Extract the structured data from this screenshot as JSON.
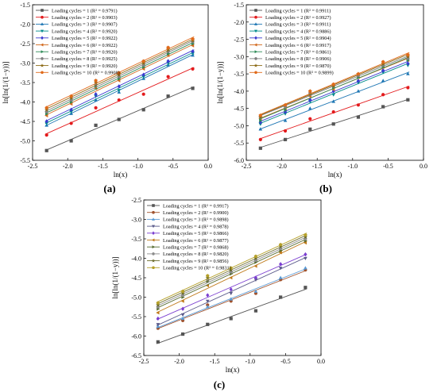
{
  "chart_data": [
    {
      "type": "scatter",
      "panel_label": "(a)",
      "xlabel": "ln(x)",
      "ylabel": "ln[ln(1/(1−y))]",
      "xlim": [
        -2.5,
        0.0
      ],
      "ylim": [
        -5.5,
        -1.5
      ],
      "xticks": [
        "-2.5",
        "-2.0",
        "-1.5",
        "-1.0",
        "-0.5",
        "0.0"
      ],
      "yticks": [
        "-5.5",
        "-5.0",
        "-4.5",
        "-4.0",
        "-3.5",
        "-3.0",
        "-2.5",
        "-2.0",
        "-1.5"
      ],
      "legend_position": "top-left",
      "x": [
        -2.3,
        -1.95,
        -1.6,
        -1.27,
        -0.92,
        -0.57,
        -0.22
      ],
      "series": [
        {
          "legend": "Loading cycles = 1  (R² = 0.9791)",
          "color": "#555555",
          "marker": "square",
          "values": [
            -5.25,
            -5.0,
            -4.6,
            -4.45,
            -4.2,
            -3.85,
            -3.65
          ]
        },
        {
          "legend": "Loading cycles = 2  (R² = 0.9903)",
          "color": "#e31a1c",
          "marker": "circle",
          "values": [
            -4.85,
            -4.55,
            -4.15,
            -3.95,
            -3.8,
            -3.35,
            -3.15
          ]
        },
        {
          "legend": "Loading cycles = 3  (R² = 0.9907)",
          "color": "#1f77b4",
          "marker": "triangle-up",
          "values": [
            -4.6,
            -4.3,
            -3.95,
            -3.75,
            -3.4,
            -3.05,
            -2.8
          ]
        },
        {
          "legend": "Loading cycles = 4  (R² = 0.9920)",
          "color": "#008b8b",
          "marker": "triangle-down",
          "values": [
            -4.55,
            -4.25,
            -3.85,
            -3.7,
            -3.35,
            -3.0,
            -2.75
          ]
        },
        {
          "legend": "Loading cycles = 5  (R² = 0.9922)",
          "color": "#3a3ad0",
          "marker": "diamond",
          "values": [
            -4.5,
            -4.2,
            -3.8,
            -3.6,
            -3.3,
            -2.95,
            -2.7
          ]
        },
        {
          "legend": "Loading cycles = 6  (R² = 0.9922)",
          "color": "#d2691e",
          "marker": "triangle-left",
          "values": [
            -4.35,
            -4.05,
            -3.65,
            -3.45,
            -3.15,
            -2.8,
            -2.55
          ]
        },
        {
          "legend": "Loading cycles = 7  (R² = 0.9920)",
          "color": "#2e8b57",
          "marker": "triangle-right",
          "values": [
            -4.3,
            -4.0,
            -3.6,
            -3.4,
            -3.1,
            -2.75,
            -2.5
          ]
        },
        {
          "legend": "Loading cycles = 8  (R² = 0.9925)",
          "color": "#7f7f7f",
          "marker": "hexagon",
          "values": [
            -4.25,
            -3.95,
            -3.55,
            -3.35,
            -3.05,
            -2.7,
            -2.45
          ]
        },
        {
          "legend": "Loading cycles = 9  (R² = 0.9920)",
          "color": "#8b6914",
          "marker": "star",
          "values": [
            -4.2,
            -3.9,
            -3.5,
            -3.3,
            -3.0,
            -2.65,
            -2.42
          ]
        },
        {
          "legend": "Loading cycles = 10  (R² = 0.9908)",
          "color": "#e06a1a",
          "marker": "pentagon",
          "values": [
            -4.15,
            -3.85,
            -3.45,
            -3.25,
            -2.95,
            -2.6,
            -2.38
          ]
        }
      ]
    },
    {
      "type": "scatter",
      "panel_label": "(b)",
      "xlabel": "ln(x)",
      "ylabel": "ln[ln(1/(1−y))]",
      "xlim": [
        -2.5,
        0.0
      ],
      "ylim": [
        -6.0,
        -1.5
      ],
      "xticks": [
        "-2.5",
        "-2.0",
        "-1.5",
        "-1.0",
        "-0.5",
        "0.0"
      ],
      "yticks": [
        "-6.0",
        "-5.5",
        "-5.0",
        "-4.5",
        "-4.0",
        "-3.5",
        "-3.0",
        "-2.5",
        "-2.0",
        "-1.5"
      ],
      "legend_position": "top-left",
      "x": [
        -2.3,
        -1.95,
        -1.6,
        -1.27,
        -0.92,
        -0.57,
        -0.22
      ],
      "series": [
        {
          "legend": "Loading cycles = 1  (R² = 0.9911)",
          "color": "#555555",
          "marker": "square",
          "values": [
            -5.65,
            -5.4,
            -5.1,
            -4.95,
            -4.75,
            -4.45,
            -4.25
          ]
        },
        {
          "legend": "Loading cycles = 2  (R² = 0.9927)",
          "color": "#e31a1c",
          "marker": "circle",
          "values": [
            -5.4,
            -5.15,
            -4.8,
            -4.6,
            -4.4,
            -4.1,
            -3.9
          ]
        },
        {
          "legend": "Loading cycles = 3  (R² = 0.9911)",
          "color": "#1f77b4",
          "marker": "triangle-up",
          "values": [
            -5.1,
            -4.85,
            -4.5,
            -4.3,
            -4.0,
            -3.7,
            -3.5
          ]
        },
        {
          "legend": "Loading cycles = 4  (R² = 0.9886)",
          "color": "#008b8b",
          "marker": "triangle-down",
          "values": [
            -4.95,
            -4.65,
            -4.3,
            -4.1,
            -3.75,
            -3.45,
            -3.25
          ]
        },
        {
          "legend": "Loading cycles = 5  (R² = 0.9904)",
          "color": "#3a3ad0",
          "marker": "diamond",
          "values": [
            -4.9,
            -4.6,
            -4.25,
            -4.0,
            -3.7,
            -3.4,
            -3.2
          ]
        },
        {
          "legend": "Loading cycles = 6  (R² = 0.9917)",
          "color": "#d2691e",
          "marker": "triangle-left",
          "values": [
            -4.8,
            -4.5,
            -4.15,
            -3.95,
            -3.6,
            -3.3,
            -3.1
          ]
        },
        {
          "legend": "Loading cycles = 7  (R² = 0.9861)",
          "color": "#2e8b57",
          "marker": "triangle-right",
          "values": [
            -4.85,
            -4.55,
            -4.1,
            -3.9,
            -3.6,
            -3.3,
            -3.1
          ]
        },
        {
          "legend": "Loading cycles = 8  (R² = 0.9906)",
          "color": "#7f7f7f",
          "marker": "hexagon",
          "values": [
            -4.75,
            -4.45,
            -4.05,
            -3.85,
            -3.55,
            -3.25,
            -3.05
          ]
        },
        {
          "legend": "Loading cycles = 9  (R² = 0.9870)",
          "color": "#8b6914",
          "marker": "star",
          "values": [
            -4.75,
            -4.4,
            -4.0,
            -3.85,
            -3.5,
            -3.2,
            -3.0
          ]
        },
        {
          "legend": "Loading cycles = 10  (R² = 0.9899)",
          "color": "#e06a1a",
          "marker": "pentagon",
          "values": [
            -4.7,
            -4.4,
            -4.0,
            -3.8,
            -3.5,
            -3.15,
            -2.95
          ]
        }
      ]
    },
    {
      "type": "scatter",
      "panel_label": "(c)",
      "xlabel": "ln(x)",
      "ylabel": "ln[ln(1/(1−y))]",
      "xlim": [
        -2.5,
        0.0
      ],
      "ylim": [
        -6.5,
        -2.5
      ],
      "xticks": [
        "-2.5",
        "-2.0",
        "-1.5",
        "-1.0",
        "-0.5",
        "0.0"
      ],
      "yticks": [
        "-6.5",
        "-6.0",
        "-5.5",
        "-5.0",
        "-4.5",
        "-4.0",
        "-3.5",
        "-3.0",
        "-2.5"
      ],
      "legend_position": "top-left",
      "x": [
        -2.3,
        -1.95,
        -1.6,
        -1.27,
        -0.92,
        -0.57,
        -0.22
      ],
      "series": [
        {
          "legend": "Loading cycles = 1  (R² = 0.9917)",
          "color": "#555555",
          "marker": "square",
          "values": [
            -6.15,
            -5.95,
            -5.7,
            -5.55,
            -5.35,
            -5.0,
            -4.75
          ]
        },
        {
          "legend": "Loading cycles = 2  (R² = 0.9900)",
          "color": "#a0522d",
          "marker": "circle",
          "values": [
            -5.8,
            -5.6,
            -5.2,
            -5.1,
            -4.9,
            -4.55,
            -4.3
          ]
        },
        {
          "legend": "Loading cycles = 3  (R² = 0.9898)",
          "color": "#5b9bd5",
          "marker": "triangle-up",
          "values": [
            -5.75,
            -5.55,
            -5.25,
            -5.05,
            -4.85,
            -4.5,
            -4.25
          ]
        },
        {
          "legend": "Loading cycles = 4  (R² = 0.9878)",
          "color": "#5a5a8a",
          "marker": "triangle-down",
          "values": [
            -5.7,
            -5.45,
            -5.1,
            -4.9,
            -4.55,
            -4.25,
            -4.0
          ]
        },
        {
          "legend": "Loading cycles = 5  (R² = 0.9866)",
          "color": "#7b3fd0",
          "marker": "diamond",
          "values": [
            -5.55,
            -5.3,
            -4.95,
            -4.8,
            -4.5,
            -4.15,
            -3.9
          ]
        },
        {
          "legend": "Loading cycles = 6  (R² = 0.9877)",
          "color": "#c07a1a",
          "marker": "triangle-left",
          "values": [
            -5.4,
            -5.1,
            -4.7,
            -4.5,
            -4.2,
            -3.85,
            -3.6
          ]
        },
        {
          "legend": "Loading cycles = 7  (R² = 0.9868)",
          "color": "#556b2f",
          "marker": "triangle-right",
          "values": [
            -5.3,
            -5.0,
            -4.6,
            -4.4,
            -4.1,
            -3.8,
            -3.55
          ]
        },
        {
          "legend": "Loading cycles = 8  (R² = 0.9820)",
          "color": "#8c8c8c",
          "marker": "hexagon",
          "values": [
            -5.25,
            -4.95,
            -4.55,
            -4.35,
            -4.05,
            -3.75,
            -3.5
          ]
        },
        {
          "legend": "Loading cycles = 9  (R² = 0.9856)",
          "color": "#6b6b2a",
          "marker": "star",
          "values": [
            -5.2,
            -4.9,
            -4.5,
            -4.3,
            -4.0,
            -3.7,
            -3.45
          ]
        },
        {
          "legend": "Loading cycles = 10  (R² = 0.9831)",
          "color": "#b5a02a",
          "marker": "pentagon",
          "values": [
            -5.15,
            -4.85,
            -4.45,
            -4.25,
            -3.95,
            -3.65,
            -3.4
          ]
        }
      ]
    }
  ]
}
